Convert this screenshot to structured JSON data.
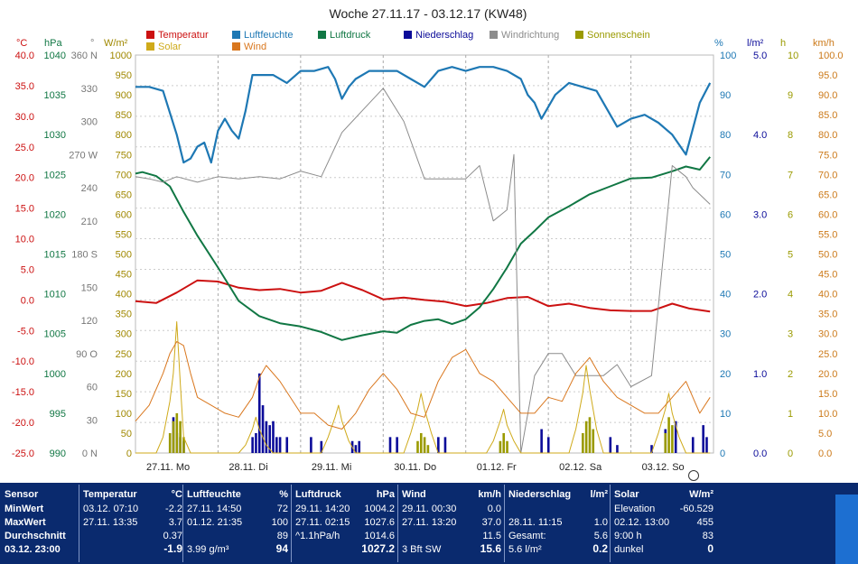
{
  "chart_data": {
    "type": "line",
    "title": "Woche 27.11.17 - 03.12.17 (KW48)",
    "x_range": [
      "27.11.17 00:00",
      "03.12.17 23:00"
    ],
    "days": [
      "27.11. Mo",
      "28.11. Di",
      "29.11. Mi",
      "30.11. Do",
      "01.12. Fr",
      "02.12. Sa",
      "03.12. So"
    ],
    "legend": [
      {
        "label": "Temperatur",
        "color": "#cc1111"
      },
      {
        "label": "Luftfeuchte",
        "color": "#1e78b4"
      },
      {
        "label": "Luftdruck",
        "color": "#117744"
      },
      {
        "label": "Niederschlag",
        "color": "#0b0b99"
      },
      {
        "label": "Windrichtung",
        "color": "#8c8c8c"
      },
      {
        "label": "Sonnenschein",
        "color": "#9a9a00"
      },
      {
        "label": "Solar",
        "color": "#cfaa1a"
      },
      {
        "label": "Wind",
        "color": "#d9771e"
      }
    ],
    "axes": {
      "temperature": {
        "unit": "°C",
        "range": [
          -25,
          40
        ],
        "ticks": [
          "40.0",
          "35.0",
          "30.0",
          "25.0",
          "20.0",
          "15.0",
          "10.0",
          "5.0",
          "0.0",
          "-5.0",
          "-10.0",
          "-15.0",
          "-20.0",
          "-25.0"
        ]
      },
      "pressure": {
        "unit": "hPa",
        "range": [
          990,
          1040
        ],
        "ticks": [
          "1040",
          "1035",
          "1030",
          "1025",
          "1020",
          "1015",
          "1010",
          "1005",
          "1000",
          "995",
          "990"
        ]
      },
      "wind_direction": {
        "unit": "°",
        "range": [
          0,
          360
        ],
        "ticks": [
          "360 N",
          "330",
          "300",
          "270 W",
          "240",
          "210",
          "180 S",
          "150",
          "120",
          "90 O",
          "60",
          "30",
          "0 N"
        ]
      },
      "solar": {
        "unit": "W/m²",
        "range": [
          0,
          1000
        ],
        "ticks": [
          "1000",
          "950",
          "900",
          "850",
          "800",
          "750",
          "700",
          "650",
          "600",
          "550",
          "500",
          "450",
          "400",
          "350",
          "300",
          "250",
          "200",
          "150",
          "100",
          "50",
          "0"
        ]
      },
      "humidity": {
        "unit": "%",
        "range": [
          0,
          100
        ],
        "ticks": [
          "100",
          "90",
          "80",
          "70",
          "60",
          "50",
          "40",
          "30",
          "20",
          "10",
          "0"
        ]
      },
      "precipitation": {
        "unit": "l/m²",
        "range": [
          0,
          5
        ],
        "ticks": [
          "5.0",
          "4.0",
          "3.0",
          "2.0",
          "1.0",
          "0.0"
        ]
      },
      "sunshine": {
        "unit": "h",
        "range": [
          0,
          10
        ],
        "ticks": [
          "10",
          "9",
          "8",
          "7",
          "6",
          "5",
          "4",
          "3",
          "2",
          "1",
          "0"
        ]
      },
      "wind_speed": {
        "unit": "km/h",
        "range": [
          0,
          100
        ],
        "ticks": [
          "100.0",
          "95.0",
          "90.0",
          "85.0",
          "80.0",
          "75.0",
          "70.0",
          "65.0",
          "60.0",
          "55.0",
          "50.0",
          "45.0",
          "40.0",
          "35.0",
          "30.0",
          "25.0",
          "20.0",
          "15.0",
          "10.0",
          "5.0",
          "0.0"
        ]
      }
    },
    "series": [
      {
        "name": "Temperatur",
        "axis": "temperature",
        "x_hours": [
          0,
          6,
          12,
          18,
          24,
          30,
          36,
          42,
          48,
          54,
          60,
          66,
          72,
          78,
          84,
          90,
          96,
          102,
          108,
          114,
          120,
          126,
          132,
          138,
          144,
          150,
          156,
          161,
          167
        ],
        "values": [
          -0.2,
          -0.5,
          1.2,
          3.2,
          3.0,
          2.0,
          1.6,
          1.8,
          1.2,
          1.5,
          2.8,
          1.6,
          0.1,
          0.4,
          0.0,
          -0.3,
          -1.0,
          -0.5,
          0.3,
          0.5,
          -1.0,
          -0.6,
          -1.3,
          -1.7,
          -1.8,
          -1.8,
          -0.6,
          -1.4,
          -1.9
        ]
      },
      {
        "name": "Luftfeuchte",
        "axis": "humidity",
        "x_hours": [
          0,
          4,
          8,
          12,
          14,
          16,
          18,
          20,
          22,
          24,
          26,
          28,
          30,
          32,
          34,
          36,
          40,
          44,
          48,
          52,
          56,
          58,
          60,
          62,
          64,
          68,
          72,
          76,
          80,
          84,
          88,
          92,
          96,
          100,
          104,
          108,
          112,
          114,
          116,
          118,
          122,
          126,
          130,
          134,
          138,
          140,
          144,
          148,
          152,
          156,
          160,
          164,
          167
        ],
        "values": [
          92,
          92,
          91,
          80,
          73,
          74,
          77,
          78,
          73,
          81,
          84,
          81,
          79,
          86,
          95,
          95,
          95,
          93,
          96,
          96,
          97,
          94,
          89,
          92,
          94,
          96,
          96,
          96,
          94,
          92,
          96,
          97,
          96,
          97,
          97,
          96,
          94,
          90,
          88,
          84,
          90,
          93,
          92,
          91,
          85,
          82,
          84,
          85,
          83,
          80,
          75,
          88,
          93
        ]
      },
      {
        "name": "Luftdruck",
        "axis": "pressure",
        "x_hours": [
          0,
          2,
          6,
          10,
          14,
          18,
          24,
          30,
          36,
          42,
          48,
          54,
          60,
          66,
          72,
          76,
          80,
          84,
          88,
          92,
          96,
          100,
          104,
          108,
          112,
          116,
          120,
          126,
          132,
          138,
          144,
          150,
          156,
          160,
          164,
          167
        ],
        "values": [
          1025.1,
          1025.3,
          1024.8,
          1023.5,
          1020.3,
          1017.3,
          1013.3,
          1009.1,
          1007.2,
          1006.3,
          1005.9,
          1005.2,
          1004.2,
          1004.8,
          1005.3,
          1005.1,
          1006.1,
          1006.6,
          1006.8,
          1006.2,
          1006.8,
          1008.3,
          1010.6,
          1013.3,
          1016.3,
          1017.9,
          1019.6,
          1021.0,
          1022.5,
          1023.5,
          1024.5,
          1024.6,
          1025.4,
          1026.0,
          1025.6,
          1027.2
        ]
      },
      {
        "name": "Windrichtung",
        "axis": "wind_direction",
        "x_hours": [
          0,
          4,
          8,
          12,
          18,
          24,
          30,
          36,
          42,
          48,
          54,
          60,
          66,
          72,
          78,
          84,
          90,
          96,
          100,
          104,
          108,
          110,
          112,
          116,
          120,
          124,
          128,
          132,
          136,
          140,
          144,
          150,
          156,
          160,
          162,
          167
        ],
        "values": [
          250,
          248,
          245,
          250,
          245,
          250,
          248,
          250,
          248,
          255,
          250,
          290,
          310,
          330,
          300,
          248,
          248,
          248,
          260,
          210,
          220,
          270,
          0,
          70,
          90,
          90,
          70,
          70,
          70,
          80,
          60,
          70,
          260,
          250,
          240,
          225
        ]
      },
      {
        "name": "Solar",
        "axis": "solar",
        "x_hours": [
          0,
          6,
          8,
          10,
          11,
          12,
          13,
          14,
          16,
          18,
          30,
          32,
          34,
          35,
          36,
          38,
          40,
          54,
          56,
          58,
          59,
          60,
          62,
          64,
          78,
          80,
          82,
          83,
          84,
          86,
          88,
          102,
          104,
          106,
          107,
          108,
          110,
          112,
          126,
          128,
          130,
          131,
          132,
          134,
          136,
          150,
          152,
          154,
          155,
          156,
          158,
          160,
          167
        ],
        "values": [
          0,
          0,
          40,
          130,
          200,
          330,
          180,
          40,
          0,
          0,
          0,
          20,
          60,
          90,
          60,
          20,
          0,
          0,
          40,
          90,
          120,
          80,
          30,
          0,
          0,
          50,
          110,
          150,
          110,
          50,
          0,
          0,
          30,
          80,
          110,
          70,
          30,
          0,
          0,
          60,
          150,
          220,
          160,
          60,
          0,
          0,
          50,
          110,
          150,
          100,
          40,
          0,
          0
        ]
      },
      {
        "name": "Wind",
        "axis": "wind_speed",
        "x_hours": [
          0,
          4,
          8,
          10,
          12,
          14,
          16,
          18,
          22,
          26,
          30,
          34,
          36,
          38,
          42,
          48,
          52,
          56,
          60,
          64,
          68,
          72,
          76,
          80,
          84,
          88,
          92,
          96,
          100,
          104,
          108,
          112,
          116,
          120,
          124,
          128,
          132,
          136,
          140,
          144,
          148,
          152,
          156,
          160,
          164,
          167
        ],
        "values": [
          8,
          12,
          20,
          25,
          28,
          27,
          20,
          14,
          12,
          10,
          9,
          14,
          19,
          22,
          18,
          10,
          10,
          7,
          6,
          10,
          16,
          20,
          16,
          10,
          9,
          18,
          24,
          26,
          20,
          18,
          14,
          10,
          10,
          14,
          13,
          20,
          24,
          18,
          14,
          12,
          10,
          10,
          14,
          18,
          10,
          14
        ]
      },
      {
        "name": "Niederschlag",
        "axis": "precipitation",
        "type": "bar",
        "x_hours": [
          11,
          12,
          13,
          14,
          34,
          35,
          36,
          37,
          38,
          39,
          40,
          41,
          42,
          44,
          51,
          54,
          63,
          64,
          65,
          74,
          76,
          88,
          90,
          118,
          120,
          138,
          140,
          150,
          154,
          157,
          162,
          165,
          166
        ],
        "values": [
          0.45,
          0.25,
          0.2,
          0.15,
          0.2,
          0.25,
          1.0,
          0.6,
          0.4,
          0.35,
          0.4,
          0.2,
          0.2,
          0.2,
          0.2,
          0.15,
          0.15,
          0.1,
          0.15,
          0.2,
          0.2,
          0.2,
          0.2,
          0.3,
          0.2,
          0.2,
          0.1,
          0.1,
          0.3,
          0.4,
          0.2,
          0.35,
          0.2
        ]
      },
      {
        "name": "Sonnenschein",
        "axis": "sunshine",
        "type": "bar",
        "x_hours": [
          10,
          11,
          12,
          13,
          14,
          82,
          83,
          84,
          85,
          106,
          107,
          108,
          130,
          131,
          132,
          133,
          154,
          155,
          156
        ],
        "values": [
          0.5,
          0.8,
          1.0,
          0.8,
          0.4,
          0.3,
          0.5,
          0.4,
          0.2,
          0.3,
          0.5,
          0.3,
          0.5,
          0.8,
          0.9,
          0.6,
          0.5,
          0.9,
          0.7
        ]
      }
    ]
  },
  "stats": {
    "columns": [
      {
        "name": "Sensor",
        "unit": "",
        "rows": [
          {
            "label": "MinWert",
            "time": "",
            "value": ""
          },
          {
            "label": "MaxWert",
            "time": "",
            "value": ""
          },
          {
            "label": "Durchschnitt",
            "time": "",
            "value": ""
          }
        ],
        "current_time": "03.12. 23:00",
        "current_extra": "",
        "current_value": ""
      },
      {
        "name": "Temperatur",
        "unit": "°C",
        "rows": [
          {
            "label": "",
            "time": "03.12.  07:10",
            "value": "-2.2"
          },
          {
            "label": "",
            "time": "27.11.  13:35",
            "value": "3.7"
          },
          {
            "label": "",
            "time": "",
            "value": "0.37"
          }
        ],
        "current_time": "",
        "current_extra": "",
        "current_value": "-1.9"
      },
      {
        "name": "Luftfeuchte",
        "unit": "%",
        "rows": [
          {
            "label": "",
            "time": "27.11.  14:50",
            "value": "72"
          },
          {
            "label": "",
            "time": "01.12.  21:35",
            "value": "100"
          },
          {
            "label": "",
            "time": "",
            "value": "89"
          }
        ],
        "current_time": "",
        "current_extra": "3.99 g/m³",
        "current_value": "94"
      },
      {
        "name": "Luftdruck",
        "unit": "hPa",
        "rows": [
          {
            "label": "",
            "time": "29.11.  14:20",
            "value": "1004.2"
          },
          {
            "label": "",
            "time": "27.11.  02:15",
            "value": "1027.6"
          },
          {
            "label": "",
            "time": "^1.1hPa/h",
            "value": "1014.6"
          }
        ],
        "current_time": "",
        "current_extra": "",
        "current_value": "1027.2"
      },
      {
        "name": "Wind",
        "unit": "km/h",
        "rows": [
          {
            "label": "",
            "time": "29.11.  00:30",
            "value": "0.0"
          },
          {
            "label": "",
            "time": "27.11.  13:20",
            "value": "37.0"
          },
          {
            "label": "",
            "time": "",
            "value": "11.5"
          }
        ],
        "current_time": "",
        "current_extra": "3 Bft SW",
        "current_value": "15.6"
      },
      {
        "name": "Niederschlag",
        "unit": "l/m²",
        "rows": [
          {
            "label": "",
            "time": "",
            "value": ""
          },
          {
            "label": "",
            "time": "28.11.  11:15",
            "value": "1.0"
          },
          {
            "label": "",
            "time": "Gesamt:",
            "value": "5.6"
          }
        ],
        "current_time": "",
        "current_extra": "5.6 l/m²",
        "current_value": "0.2"
      },
      {
        "name": "Solar",
        "unit": "W/m²",
        "rows": [
          {
            "label": "",
            "time": "Elevation",
            "value": "-60.529"
          },
          {
            "label": "",
            "time": "02.12.  13:00",
            "value": "455"
          },
          {
            "label": "",
            "time": "9:00 h",
            "value": "83"
          }
        ],
        "current_time": "",
        "current_extra": "dunkel",
        "current_value": "0"
      }
    ]
  }
}
